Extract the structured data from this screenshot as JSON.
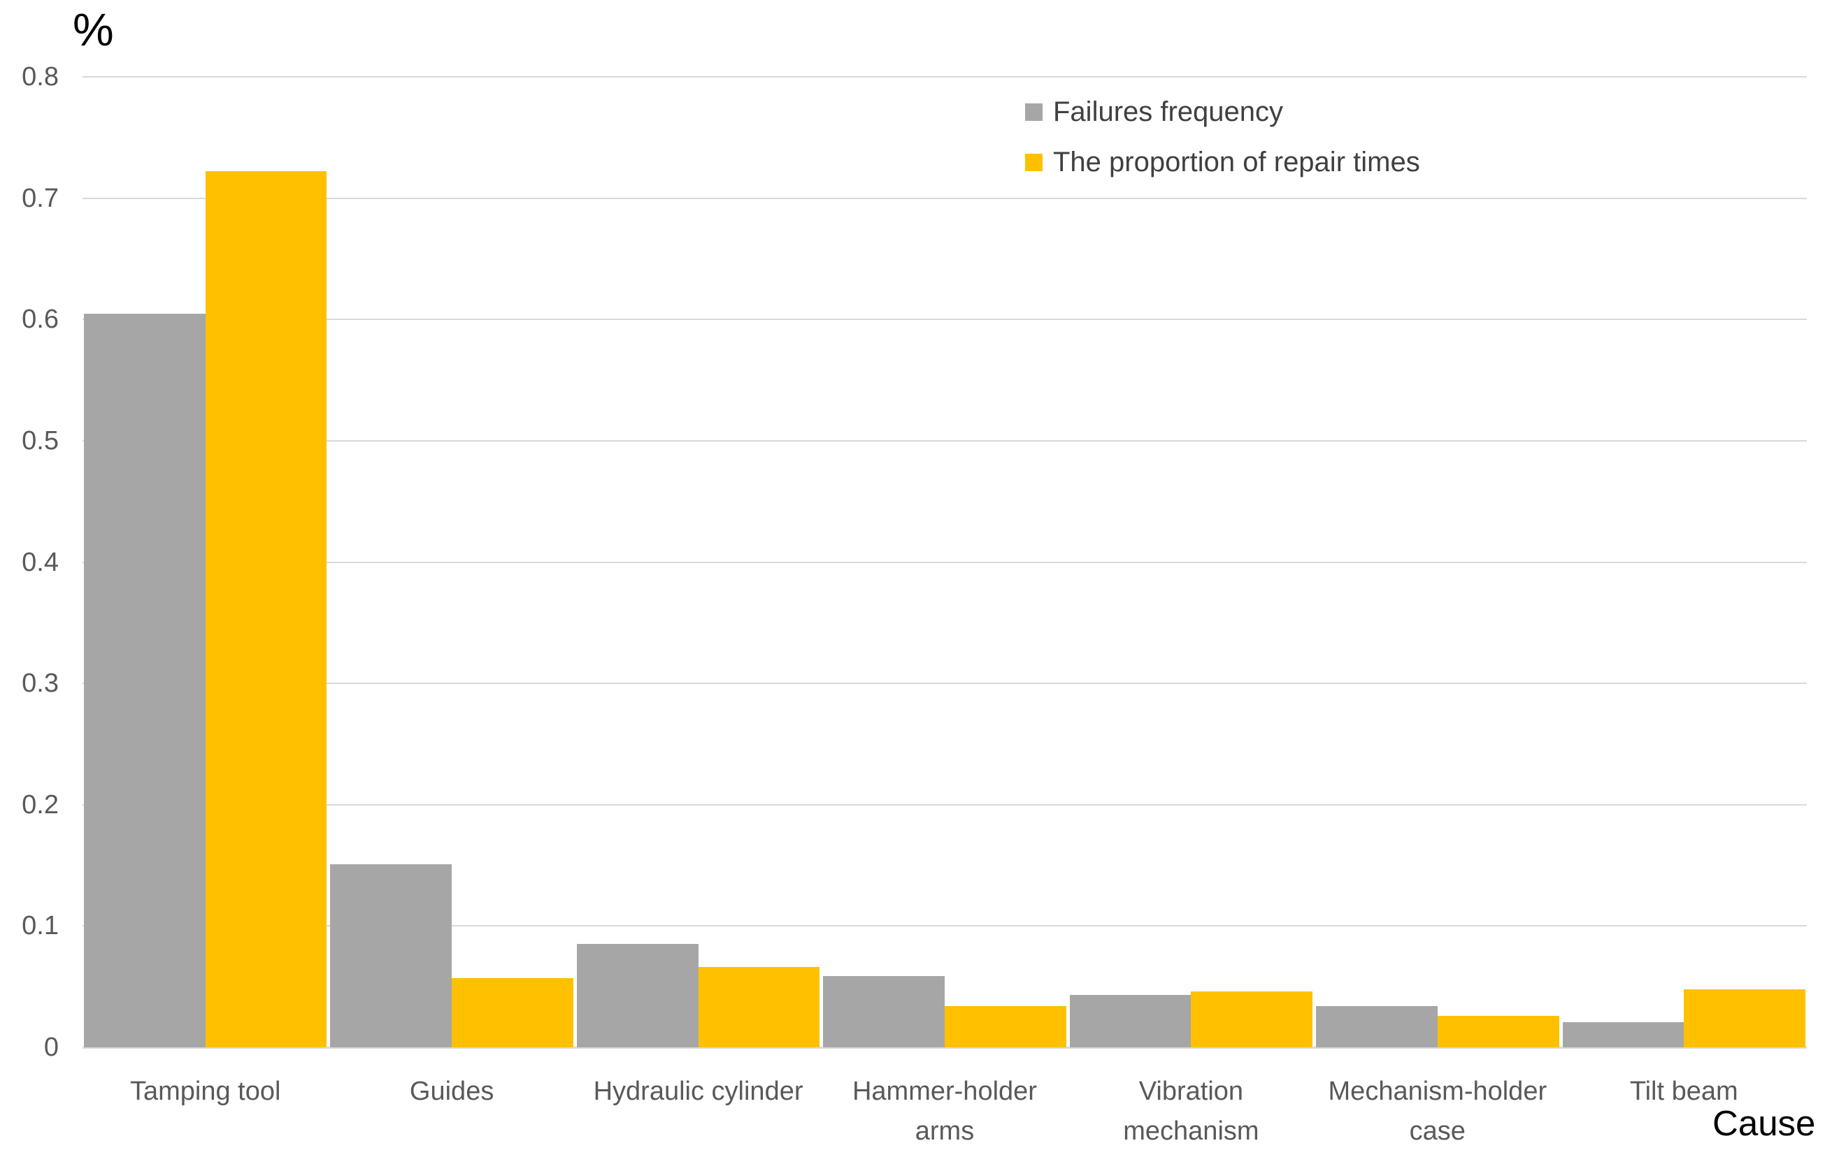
{
  "chart_data": {
    "type": "bar",
    "title": "",
    "y_axis_title": "%",
    "x_axis_title": "Cause",
    "ylim": [
      0,
      0.8
    ],
    "y_tick_labels": [
      "0",
      "0.1",
      "0.2",
      "0.3",
      "0.4",
      "0.5",
      "0.6",
      "0.7",
      "0.8"
    ],
    "y_tick_values": [
      0,
      0.1,
      0.2,
      0.3,
      0.4,
      0.5,
      0.6,
      0.7,
      0.8
    ],
    "grid": "horizontal",
    "legend_position": "top-right",
    "categories": [
      "Tamping tool",
      "Guides",
      "Hydraulic cylinder",
      "Hammer-holder arms",
      "Vibration mechanism",
      "Mechanism-holder case",
      "Tilt beam"
    ],
    "category_label_lines": [
      [
        "Tamping tool"
      ],
      [
        "Guides"
      ],
      [
        "Hydraulic cylinder"
      ],
      [
        "Hammer-holder",
        "arms"
      ],
      [
        "Vibration",
        "mechanism"
      ],
      [
        "Mechanism-holder",
        "case"
      ],
      [
        "Tilt beam"
      ]
    ],
    "series": [
      {
        "name": "Failures frequency",
        "color": "#A6A6A6",
        "values": [
          0.605,
          0.151,
          0.085,
          0.059,
          0.043,
          0.034,
          0.021
        ]
      },
      {
        "name": "The proportion of repair times",
        "color": "#FFC000",
        "values": [
          0.722,
          0.057,
          0.066,
          0.034,
          0.046,
          0.026,
          0.048
        ]
      }
    ]
  },
  "colors": {
    "grid": "#D9D9D9",
    "axis_line": "#DBDBDB",
    "tick_text": "#595959",
    "category_text": "#595959",
    "legend_text": "#404040",
    "axis_title_text": "#000000",
    "background": "#FFFFFF"
  }
}
